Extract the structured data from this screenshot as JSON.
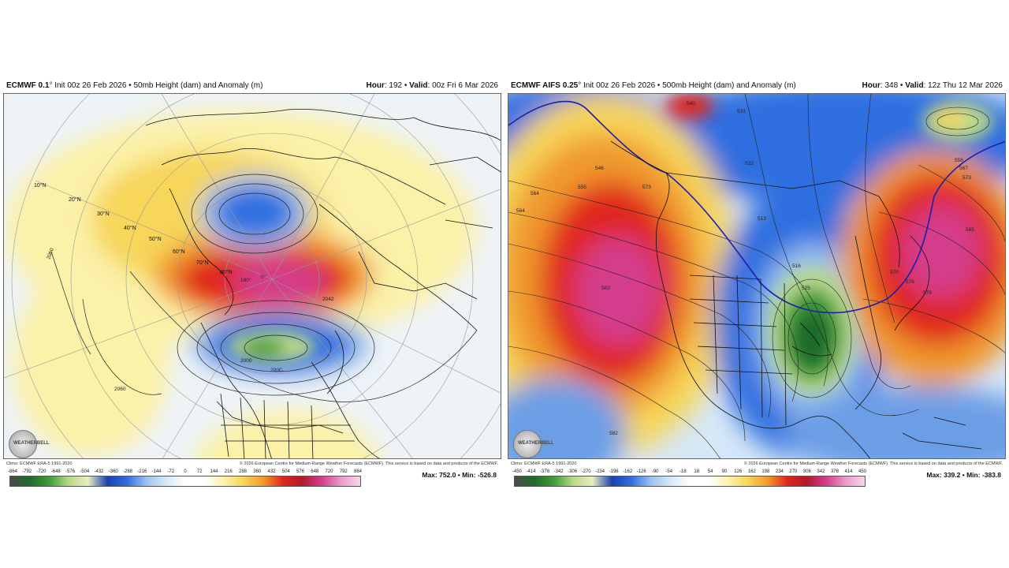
{
  "left": {
    "model": "ECMWF 0.1",
    "model_suffix": "° Init 00z 26 Feb 2026 • 50mb Height (dam) and Anomaly (m)",
    "hour_label": "Hour",
    "hour": ": 192 • ",
    "valid_label": "Valid",
    "valid": ": 00z Fri 6 Mar 2026",
    "climo": "Climo: ECMWF ERA-5 1991-2020",
    "copyright": "© 2026 European Centre for Medium-Range Weather Forecasts (ECMWF). This service is based on data and products of the ECMWF.",
    "maxmin": "Max: 752.0 • Min: -526.8",
    "colorbar_ticks": [
      "-864",
      "-792",
      "-720",
      "-648",
      "-576",
      "-504",
      "-432",
      "-360",
      "-288",
      "-216",
      "-144",
      "-72",
      "0",
      "72",
      "144",
      "216",
      "288",
      "360",
      "432",
      "504",
      "576",
      "648",
      "720",
      "792",
      "864"
    ],
    "lat_labels": [
      "10°N",
      "20°N",
      "30°N",
      "40°N",
      "50°N",
      "60°N",
      "70°N",
      "80°N"
    ],
    "contour_labels": [
      "2060",
      "2042",
      "200C",
      "180°",
      "0°",
      "2060",
      "2000"
    ]
  },
  "right": {
    "model": "ECMWF AIFS 0.25",
    "model_suffix": "° Init 00z 26 Feb 2026 • 500mb Height (dam) and Anomaly (m)",
    "hour_label": "Hour",
    "hour": ": 348 • ",
    "valid_label": "Valid",
    "valid": ": 12z Thu 12 Mar 2026",
    "climo": "Climo: ECMWF ERA-5 1991-2020",
    "copyright": "© 2026 European Centre for Medium-Range Weather Forecasts (ECMWF). This service is based on data and products of the ECMWF.",
    "maxmin": "Max: 339.2 • Min: -383.8",
    "colorbar_ticks": [
      "-450",
      "-414",
      "-378",
      "-342",
      "-306",
      "-270",
      "-234",
      "-198",
      "-162",
      "-126",
      "-90",
      "-54",
      "-18",
      "18",
      "54",
      "90",
      "126",
      "162",
      "198",
      "234",
      "270",
      "306",
      "342",
      "378",
      "414",
      "450"
    ],
    "contour_labels": [
      "564",
      "555",
      "546",
      "582",
      "573",
      "540",
      "531",
      "522",
      "513",
      "516",
      "525",
      "570",
      "576",
      "579",
      "585",
      "582",
      "564",
      "558",
      "567",
      "573"
    ]
  },
  "logo_text": "WEATHERBELL",
  "colors": {
    "deep_green": "#1f6b2a",
    "green": "#3f9c3a",
    "light_green": "#b9d98a",
    "blue_dark": "#1a3fb0",
    "blue": "#2f6ee0",
    "light_blue": "#9cc3ee",
    "pale_blue": "#d6e8f8",
    "pale_yellow": "#fbf1a8",
    "yellow": "#f7d65a",
    "orange": "#f09a2e",
    "red": "#e0281c",
    "magenta": "#d43c8c",
    "pink": "#e89ac8"
  }
}
